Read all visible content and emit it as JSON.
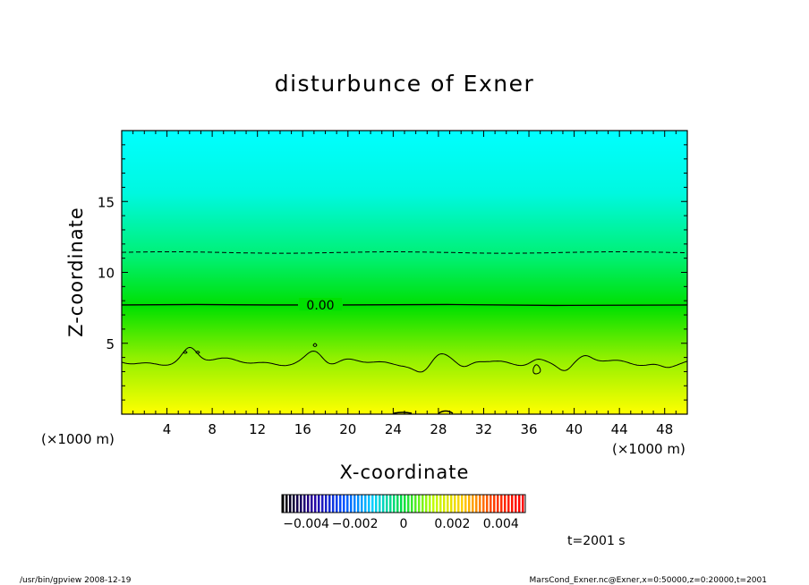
{
  "chart_data": {
    "type": "contour",
    "title": "disturbunce of Exner",
    "xlabel": "X-coordinate",
    "ylabel": "Z-coordinate",
    "x_unit": "(×1000 m)",
    "y_unit": "(×1000 m)",
    "xlim": [
      0,
      50
    ],
    "ylim": [
      0,
      20
    ],
    "xticks": [
      4,
      8,
      12,
      16,
      20,
      24,
      28,
      32,
      36,
      40,
      44,
      48
    ],
    "yticks": [
      5,
      10,
      15
    ],
    "contour_label": "0.00",
    "contour_zero_z": 7.7,
    "contour_dashed_z": 11.4,
    "contour_low_z": 3.7,
    "colorbar": {
      "ticks": [
        "−0.004",
        "−0.002",
        "0",
        "0.002",
        "0.004"
      ],
      "tick_values": [
        -0.004,
        -0.002,
        0,
        0.002,
        0.004
      ],
      "range": [
        -0.005,
        0.005
      ],
      "colors": [
        "#000000",
        "#2a00a0",
        "#0050ff",
        "#00d0ff",
        "#00e040",
        "#c0ff00",
        "#ffd000",
        "#ff4000",
        "#ff0000"
      ]
    },
    "time_label": "t=2001 s",
    "fill_colors": {
      "top": "#00ffff",
      "middle": "#00e000",
      "bottom": "#ffff00"
    }
  },
  "footer": {
    "left": "/usr/bin/gpview   2008-12-19",
    "right": "MarsCond_Exner.nc@Exner,x=0:50000,z=0:20000,t=2001"
  }
}
